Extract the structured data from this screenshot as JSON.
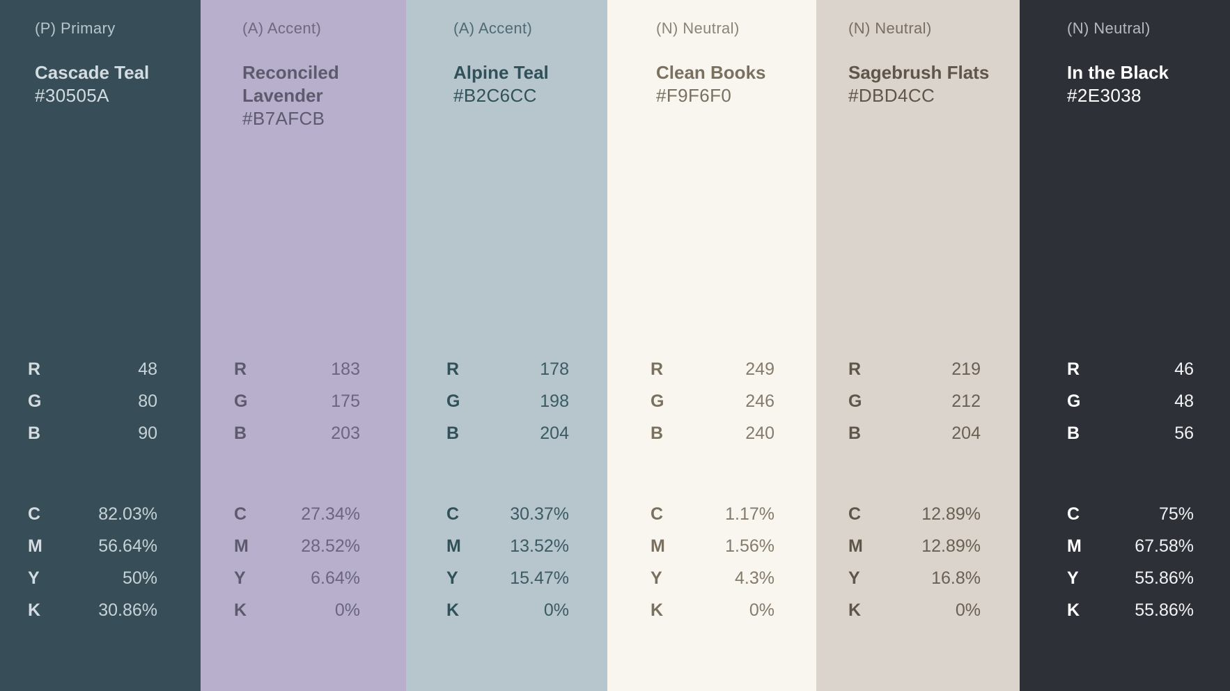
{
  "swatches": [
    {
      "role": "(P) Primary",
      "name_lines": [
        "Cascade Teal"
      ],
      "hex": "#30505A",
      "bg": "#374D57",
      "role_color": "#B7C6CC",
      "name_color": "#D3DCE0",
      "hex_color": "#D3DCE0",
      "label_color": "#D3DCE0",
      "value_color": "#C7D2D6",
      "rgb": [
        {
          "k": "R",
          "v": "48"
        },
        {
          "k": "G",
          "v": "80"
        },
        {
          "k": "B",
          "v": "90"
        }
      ],
      "cmyk": [
        {
          "k": "C",
          "v": "82.03%"
        },
        {
          "k": "M",
          "v": "56.64%"
        },
        {
          "k": "Y",
          "v": "50%"
        },
        {
          "k": "K",
          "v": "30.86%"
        }
      ]
    },
    {
      "role": "(A) Accent)",
      "name_lines": [
        "Reconciled",
        "Lavender"
      ],
      "hex": "#B7AFCB",
      "bg": "#B7AFCB",
      "role_color": "#6E6880",
      "name_color": "#5E5A6E",
      "hex_color": "#5E5A6E",
      "label_color": "#5E5A6E",
      "value_color": "#6A6580",
      "rgb": [
        {
          "k": "R",
          "v": "183"
        },
        {
          "k": "G",
          "v": "175"
        },
        {
          "k": "B",
          "v": "203"
        }
      ],
      "cmyk": [
        {
          "k": "C",
          "v": "27.34%"
        },
        {
          "k": "M",
          "v": "28.52%"
        },
        {
          "k": "Y",
          "v": "6.64%"
        },
        {
          "k": "K",
          "v": "0%"
        }
      ]
    },
    {
      "role": "(A) Accent)",
      "name_lines": [
        "Alpine Teal"
      ],
      "hex": "#B2C6CC",
      "bg": "#B7C6CC",
      "role_color": "#4E6A75",
      "name_color": "#30505A",
      "hex_color": "#30505A",
      "label_color": "#30505A",
      "value_color": "#3C5A64",
      "rgb": [
        {
          "k": "R",
          "v": "178"
        },
        {
          "k": "G",
          "v": "198"
        },
        {
          "k": "B",
          "v": "204"
        }
      ],
      "cmyk": [
        {
          "k": "C",
          "v": "30.37%"
        },
        {
          "k": "M",
          "v": "13.52%"
        },
        {
          "k": "Y",
          "v": "15.47%"
        },
        {
          "k": "K",
          "v": "0%"
        }
      ]
    },
    {
      "role": "(N) Neutral)",
      "name_lines": [
        "Clean Books"
      ],
      "hex": "#F9F6F0",
      "bg": "#F9F6F0",
      "role_color": "#8C8377",
      "name_color": "#7A7060",
      "hex_color": "#7A7060",
      "label_color": "#7A7060",
      "value_color": "#857B6C",
      "rgb": [
        {
          "k": "R",
          "v": "249"
        },
        {
          "k": "G",
          "v": "246"
        },
        {
          "k": "B",
          "v": "240"
        }
      ],
      "cmyk": [
        {
          "k": "C",
          "v": "1.17%"
        },
        {
          "k": "M",
          "v": "1.56%"
        },
        {
          "k": "Y",
          "v": "4.3%"
        },
        {
          "k": "K",
          "v": "0%"
        }
      ]
    },
    {
      "role": "(N) Neutral)",
      "name_lines": [
        "Sagebrush Flats"
      ],
      "hex": "#DBD4CC",
      "bg": "#DBD4CC",
      "role_color": "#7A6E62",
      "name_color": "#5F5549",
      "hex_color": "#5F5549",
      "label_color": "#5F5549",
      "value_color": "#6A5F53",
      "rgb": [
        {
          "k": "R",
          "v": "219"
        },
        {
          "k": "G",
          "v": "212"
        },
        {
          "k": "B",
          "v": "204"
        }
      ],
      "cmyk": [
        {
          "k": "C",
          "v": "12.89%"
        },
        {
          "k": "M",
          "v": "12.89%"
        },
        {
          "k": "Y",
          "v": "16.8%"
        },
        {
          "k": "K",
          "v": "0%"
        }
      ]
    },
    {
      "role": "(N) Neutral)",
      "name_lines": [
        "In the Black"
      ],
      "hex": "#2E3038",
      "bg": "#2E3038",
      "role_color": "#B7B9C2",
      "name_color": "#FFFFFF",
      "hex_color": "#FFFFFF",
      "label_color": "#FFFFFF",
      "value_color": "#F2F2F4",
      "rgb": [
        {
          "k": "R",
          "v": "46"
        },
        {
          "k": "G",
          "v": "48"
        },
        {
          "k": "B",
          "v": "56"
        }
      ],
      "cmyk": [
        {
          "k": "C",
          "v": "75%"
        },
        {
          "k": "M",
          "v": "67.58%"
        },
        {
          "k": "Y",
          "v": "55.86%"
        },
        {
          "k": "K",
          "v": "55.86%"
        }
      ]
    }
  ]
}
